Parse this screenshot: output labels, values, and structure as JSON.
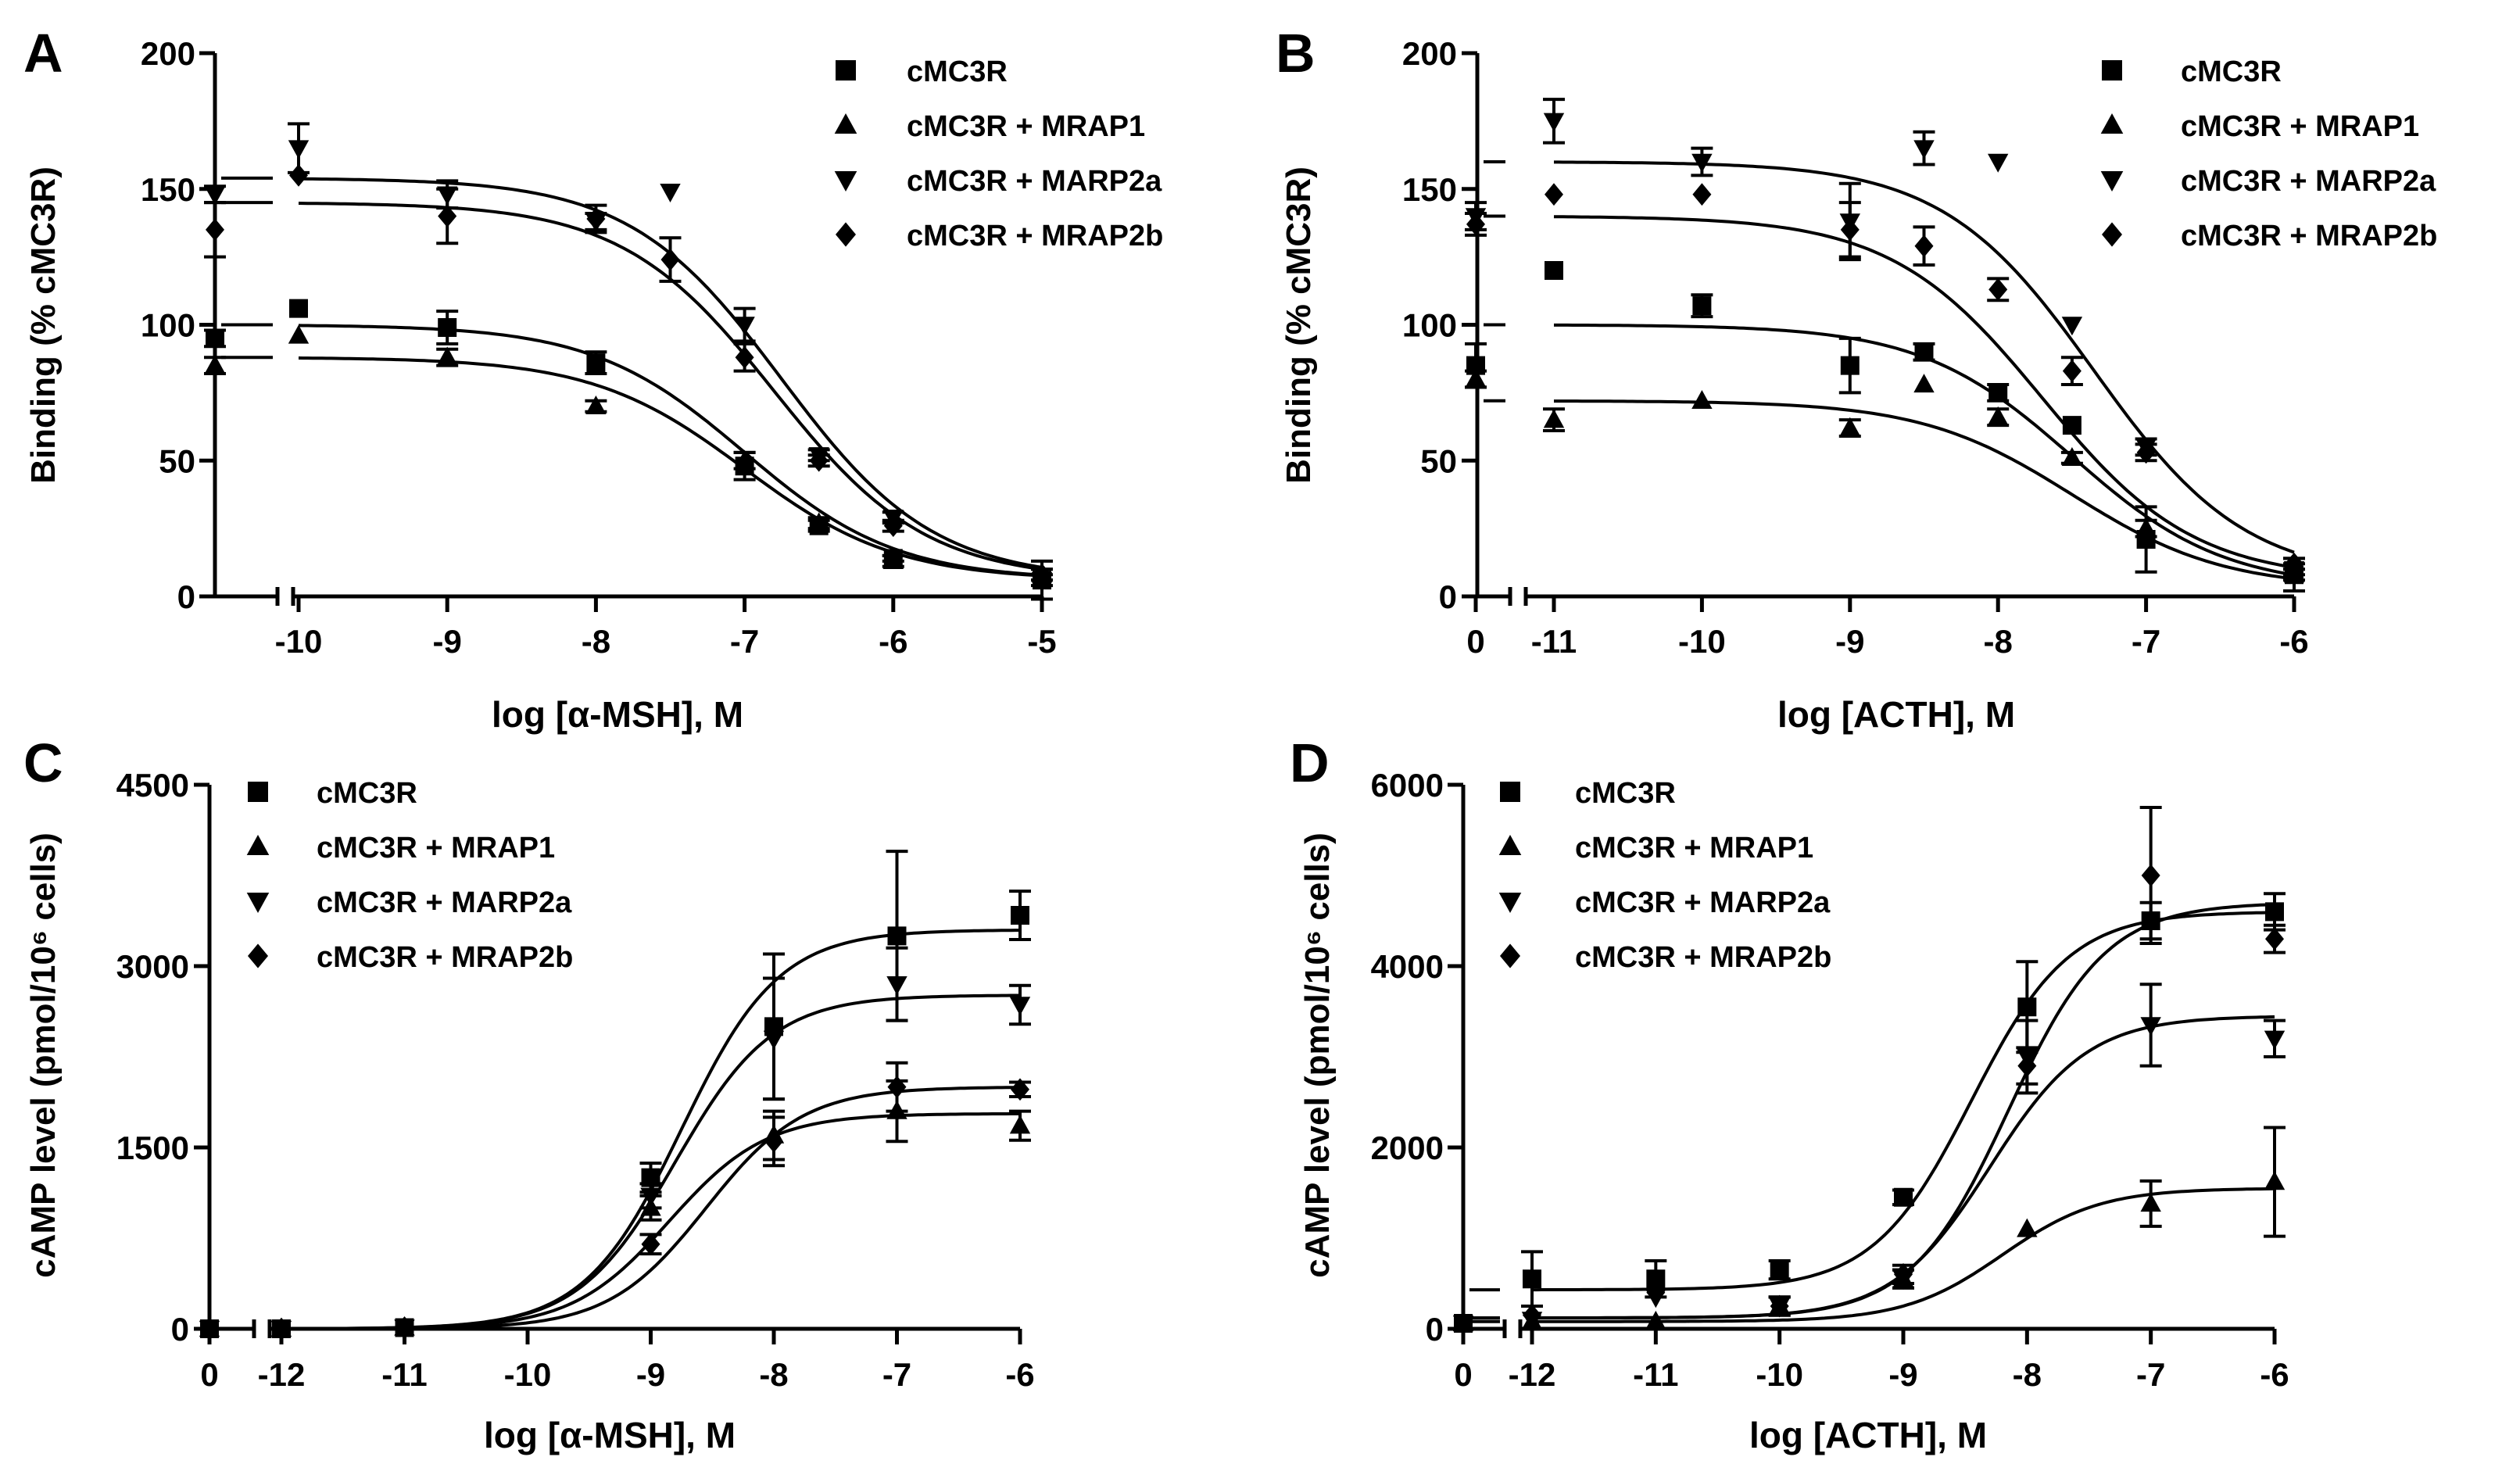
{
  "figure": {
    "series_names": [
      "cMC3R",
      "cMC3R + MRAP1",
      "cMC3R + MARP2a",
      "cMC3R + MRAP2b"
    ],
    "color": "#000000"
  },
  "chart_data": [
    {
      "panel": "A",
      "type": "scatter",
      "curve": "binding",
      "xlabel": "log [α-MSH], M",
      "ylabel": "Binding (% cMC3R)",
      "xlim": [
        -10,
        -5
      ],
      "ylim": [
        0,
        200
      ],
      "xticks": [
        -10,
        -9,
        -8,
        -7,
        -6,
        -5
      ],
      "xtick_labels": [
        "-10",
        "-9",
        "-8",
        "-7",
        "-6",
        "-5"
      ],
      "yticks": [
        0,
        50,
        100,
        150,
        200
      ],
      "ytick_labels": [
        "0",
        "50",
        "100",
        "150",
        "200"
      ],
      "zero_tick_label": "",
      "series": [
        {
          "name": "cMC3R",
          "marker": "square",
          "x": [
            -10,
            -9,
            -8,
            -7,
            -6.5,
            -6,
            -5
          ],
          "y": [
            106,
            99,
            86,
            48,
            26,
            14,
            6
          ],
          "err": [
            0,
            6,
            4,
            5,
            2,
            1,
            7
          ],
          "zero_value": 95,
          "zero_err": 3,
          "fit": {
            "top": 100,
            "bottom": 6,
            "ec50": -7.0,
            "hill": 0.85
          }
        },
        {
          "name": "cMC3R + MRAP1",
          "marker": "triangle-up",
          "x": [
            -10,
            -9,
            -8,
            -7,
            -6.5,
            -6,
            -5
          ],
          "y": [
            96,
            88,
            70,
            50,
            27,
            13,
            8
          ],
          "err": [
            0,
            3,
            2,
            3,
            2,
            2,
            2
          ],
          "zero_value": 85,
          "zero_err": 3,
          "fit": {
            "top": 88,
            "bottom": 6,
            "ec50": -7.0,
            "hill": 0.85
          }
        },
        {
          "name": "cMC3R + MARP2a",
          "marker": "triangle-down",
          "x": [
            -10,
            -9,
            -8,
            -7.5,
            -7,
            -6.5,
            -6,
            -5
          ],
          "y": [
            165,
            148,
            138,
            149,
            100,
            52,
            29,
            6
          ],
          "err": [
            9,
            5,
            3,
            0,
            6,
            2,
            2,
            2
          ],
          "zero_value": 148,
          "zero_err": 3,
          "fit": {
            "top": 154,
            "bottom": 6,
            "ec50": -6.75,
            "hill": 0.85
          }
        },
        {
          "name": "cMC3R + MRAP2b",
          "marker": "diamond",
          "x": [
            -10,
            -9,
            -8,
            -7.5,
            -7,
            -6.5,
            -6,
            -5
          ],
          "y": [
            155,
            140,
            139,
            124,
            88,
            50,
            26,
            8
          ],
          "err": [
            0,
            10,
            5,
            8,
            5,
            2,
            2,
            2
          ],
          "zero_value": 135,
          "zero_err": 10,
          "fit": {
            "top": 145,
            "bottom": 6,
            "ec50": -6.8,
            "hill": 0.85
          }
        }
      ]
    },
    {
      "panel": "B",
      "type": "scatter",
      "curve": "binding",
      "xlabel": "log [ACTH], M",
      "ylabel": "Binding (% cMC3R)",
      "xlim": [
        -11,
        -6
      ],
      "ylim": [
        0,
        200
      ],
      "xticks": [
        -11,
        -10,
        -9,
        -8,
        -7,
        -6
      ],
      "xtick_labels": [
        "-11",
        "-10",
        "-9",
        "-8",
        "-7",
        "-6"
      ],
      "yticks": [
        0,
        50,
        100,
        150,
        200
      ],
      "ytick_labels": [
        "0",
        "50",
        "100",
        "150",
        "200"
      ],
      "zero_tick_label": "0",
      "series": [
        {
          "name": "cMC3R",
          "marker": "square",
          "x": [
            -11,
            -10,
            -9,
            -8.5,
            -8,
            -7.5,
            -7,
            -6
          ],
          "y": [
            120,
            107,
            85,
            90,
            75,
            63,
            21,
            8
          ],
          "err": [
            0,
            4,
            10,
            3,
            3,
            0,
            12,
            6
          ],
          "zero_value": 85,
          "zero_err": 8,
          "fit": {
            "top": 100,
            "bottom": 3,
            "ec50": -7.5,
            "hill": 0.85
          }
        },
        {
          "name": "cMC3R + MRAP1",
          "marker": "triangle-up",
          "x": [
            -11,
            -10,
            -9,
            -8.5,
            -8,
            -7.5,
            -7,
            -6
          ],
          "y": [
            65,
            72,
            62,
            78,
            66,
            51,
            25,
            8
          ],
          "err": [
            4,
            0,
            3,
            0,
            3,
            2,
            3,
            2
          ],
          "zero_value": 80,
          "zero_err": 3,
          "fit": {
            "top": 72,
            "bottom": 3,
            "ec50": -7.5,
            "hill": 0.85
          }
        },
        {
          "name": "cMC3R + MARP2a",
          "marker": "triangle-down",
          "x": [
            -11,
            -10,
            -9,
            -8.5,
            -8,
            -7.5,
            -7,
            -6
          ],
          "y": [
            175,
            160,
            138,
            165,
            160,
            100,
            55,
            10
          ],
          "err": [
            8,
            5,
            14,
            6,
            0,
            0,
            3,
            2
          ],
          "zero_value": 140,
          "zero_err": 5,
          "fit": {
            "top": 160,
            "bottom": 6,
            "ec50": -7.35,
            "hill": 0.85
          }
        },
        {
          "name": "cMC3R + MRAP2b",
          "marker": "diamond",
          "x": [
            -11,
            -10,
            -9,
            -8.5,
            -8,
            -7.5,
            -7,
            -6
          ],
          "y": [
            148,
            148,
            135,
            129,
            113,
            83,
            53,
            12
          ],
          "err": [
            0,
            0,
            10,
            7,
            4,
            5,
            3,
            2
          ],
          "zero_value": 137,
          "zero_err": 4,
          "fit": {
            "top": 140,
            "bottom": 6,
            "ec50": -7.7,
            "hill": 0.85
          }
        }
      ]
    },
    {
      "panel": "C",
      "type": "scatter",
      "curve": "response",
      "xlabel": "log [α-MSH], M",
      "ylabel": "cAMP level (pmol/10⁶ cells)",
      "xlim": [
        -12,
        -6
      ],
      "ylim": [
        0,
        4500
      ],
      "xticks": [
        -12,
        -11,
        -10,
        -9,
        -8,
        -7,
        -6
      ],
      "xtick_labels": [
        "-12",
        "-11",
        "-10",
        "-9",
        "-8",
        "-7",
        "-6"
      ],
      "yticks": [
        0,
        1500,
        3000,
        4500
      ],
      "ytick_labels": [
        "0",
        "1500",
        "3000",
        "4500"
      ],
      "zero_tick_label": "0",
      "series": [
        {
          "name": "cMC3R",
          "marker": "square",
          "x": [
            -12,
            -11,
            -9,
            -8,
            -7,
            -6
          ],
          "y": [
            0,
            10,
            1250,
            2500,
            3250,
            3420
          ],
          "err": [
            0,
            0,
            120,
            600,
            700,
            200
          ],
          "zero_value": 0,
          "zero_err": 0,
          "fit": {
            "top": 3300,
            "bottom": 0,
            "ec50": -8.75,
            "hill": 1.1
          }
        },
        {
          "name": "cMC3R + MRAP1",
          "marker": "triangle-up",
          "x": [
            -12,
            -11,
            -9,
            -8,
            -7,
            -6
          ],
          "y": [
            0,
            10,
            1000,
            1600,
            1800,
            1680
          ],
          "err": [
            0,
            0,
            100,
            200,
            250,
            120
          ],
          "zero_value": 0,
          "zero_err": 0,
          "fit": {
            "top": 1780,
            "bottom": 0,
            "ec50": -8.85,
            "hill": 1.1
          }
        },
        {
          "name": "cMC3R + MARP2a",
          "marker": "triangle-down",
          "x": [
            -12,
            -11,
            -9,
            -8,
            -7,
            -6
          ],
          "y": [
            0,
            10,
            1100,
            2400,
            2850,
            2680
          ],
          "err": [
            0,
            0,
            100,
            500,
            300,
            160
          ],
          "zero_value": 0,
          "zero_err": 0,
          "fit": {
            "top": 2760,
            "bottom": 0,
            "ec50": -8.8,
            "hill": 1.1
          }
        },
        {
          "name": "cMC3R + MRAP2b",
          "marker": "diamond",
          "x": [
            -12,
            -11,
            -9,
            -8,
            -7,
            -6
          ],
          "y": [
            0,
            10,
            700,
            1550,
            2000,
            1980
          ],
          "err": [
            0,
            0,
            80,
            200,
            200,
            60
          ],
          "zero_value": 0,
          "zero_err": 0,
          "fit": {
            "top": 2000,
            "bottom": 0,
            "ec50": -8.55,
            "hill": 1.1
          }
        }
      ]
    },
    {
      "panel": "D",
      "type": "scatter",
      "curve": "response",
      "xlabel": "log [ACTH], M",
      "ylabel": "cAMP level (pmol/10⁶ cells)",
      "xlim": [
        -12,
        -6
      ],
      "ylim": [
        0,
        6000
      ],
      "xticks": [
        -12,
        -11,
        -10,
        -9,
        -8,
        -7,
        -6
      ],
      "xtick_labels": [
        "-12",
        "-11",
        "-10",
        "-9",
        "-8",
        "-7",
        "-6"
      ],
      "yticks": [
        0,
        2000,
        4000,
        6000
      ],
      "ytick_labels": [
        "0",
        "2000",
        "4000",
        "6000"
      ],
      "zero_tick_label": "0",
      "series": [
        {
          "name": "cMC3R",
          "marker": "square",
          "x": [
            -12,
            -11,
            -10,
            -9,
            -8,
            -7,
            -6
          ],
          "y": [
            550,
            550,
            650,
            1450,
            3550,
            4500,
            4600
          ],
          "err": [
            300,
            200,
            100,
            80,
            500,
            200,
            200
          ],
          "zero_value": 60,
          "zero_err": 0,
          "fit": {
            "top": 4600,
            "bottom": 430,
            "ec50": -8.45,
            "hill": 1.1
          }
        },
        {
          "name": "cMC3R + MRAP1",
          "marker": "triangle-up",
          "x": [
            -12,
            -11,
            -10,
            -9,
            -8,
            -7,
            -6
          ],
          "y": [
            80,
            80,
            250,
            550,
            1100,
            1380,
            1620
          ],
          "err": [
            0,
            0,
            100,
            100,
            0,
            250,
            600
          ],
          "zero_value": 60,
          "zero_err": 0,
          "fit": {
            "top": 1550,
            "bottom": 80,
            "ec50": -8.2,
            "hill": 1.1
          }
        },
        {
          "name": "cMC3R + MARP2a",
          "marker": "triangle-down",
          "x": [
            -12,
            -11,
            -10,
            -9,
            -8,
            -7,
            -6
          ],
          "y": [
            100,
            350,
            250,
            550,
            3000,
            3350,
            3200
          ],
          "err": [
            0,
            0,
            100,
            100,
            400,
            450,
            200
          ],
          "zero_value": 60,
          "zero_err": 0,
          "fit": {
            "top": 3450,
            "bottom": 120,
            "ec50": -8.3,
            "hill": 1.1
          }
        },
        {
          "name": "cMC3R + MRAP2b",
          "marker": "diamond",
          "x": [
            -12,
            -11,
            -10,
            -9,
            -8,
            -7,
            -6
          ],
          "y": [
            150,
            400,
            250,
            600,
            2900,
            5000,
            4300
          ],
          "err": [
            0,
            0,
            100,
            100,
            200,
            750,
            150
          ],
          "zero_value": 60,
          "zero_err": 0,
          "fit": {
            "top": 4700,
            "bottom": 120,
            "ec50": -8.15,
            "hill": 1.1
          }
        }
      ]
    }
  ]
}
